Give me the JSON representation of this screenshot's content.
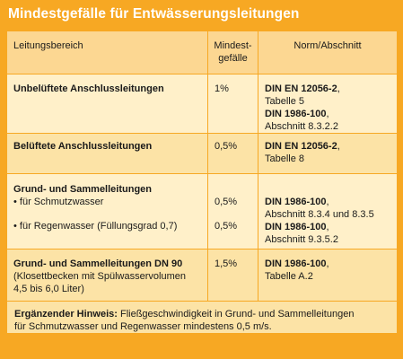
{
  "title": "Mindestgefälle für Entwässerungsleitungen",
  "headers": {
    "area": "Leitungsbereich",
    "slope_line1": "Mindest-",
    "slope_line2": "gefälle",
    "norm": "Norm/Abschnitt"
  },
  "rows": [
    {
      "area": "Unbelüftete Anschlussleitungen",
      "slope": "1%",
      "norm1_bold": "DIN EN 12056-2",
      "norm1_rest": ",",
      "norm1_line2": "Tabelle 5",
      "norm2_bold": "DIN 1986-100",
      "norm2_rest": ",",
      "norm2_line2": "Abschnitt 8.3.2.2"
    },
    {
      "area": "Belüftete Anschlussleitungen",
      "slope": "0,5%",
      "norm1_bold": "DIN EN 12056-2",
      "norm1_rest": ",",
      "norm1_line2": "Tabelle 8"
    },
    {
      "area": "Grund- und Sammelleitungen",
      "sub1": "• für Schmutzwasser",
      "sub2": "• für Regenwasser (Füllungsgrad 0,7)",
      "slope1": "0,5%",
      "slope2": "0,5%",
      "norm1_bold": "DIN 1986-100",
      "norm1_rest": ",",
      "norm1_line2": "Abschnitt 8.3.4 und 8.3.5",
      "norm2_bold": "DIN 1986-100",
      "norm2_rest": ",",
      "norm2_line2": "Abschnitt 9.3.5.2"
    },
    {
      "area": "Grund- und Sammelleitungen DN 90",
      "area_detail1": "(Klosettbecken mit Spülwasservolumen",
      "area_detail2": "4,5 bis 6,0 Liter)",
      "slope": "1,5%",
      "norm1_bold": "DIN 1986-100",
      "norm1_rest": ",",
      "norm1_line2": "Tabelle A.2"
    }
  ],
  "hint": {
    "label": "Ergänzender Hinweis:",
    "text1": " Fließgeschwindigkeit in Grund- und Sammelleitungen",
    "text2": "für Schmutzwasser und Regenwasser mindestens 0,5 m/s."
  }
}
